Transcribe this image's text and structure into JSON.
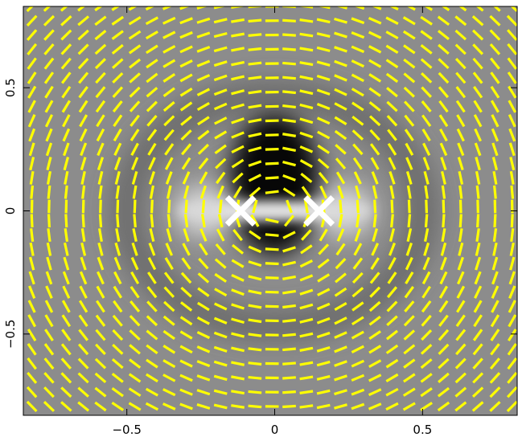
{
  "chart_data": {
    "type": "heatmap",
    "title": "",
    "xlabel": "",
    "ylabel": "",
    "xlim": [
      -0.85,
      0.82
    ],
    "ylim": [
      -0.83,
      0.83
    ],
    "x_ticks": [
      {
        "value": -0.5,
        "label": "−0.5"
      },
      {
        "value": 0,
        "label": "0"
      },
      {
        "value": 0.5,
        "label": "0.5"
      }
    ],
    "y_ticks": [
      {
        "value": -0.5,
        "label": "−0.5"
      },
      {
        "value": 0,
        "label": "0"
      },
      {
        "value": 0.5,
        "label": "0.5"
      }
    ],
    "colormap": "gray",
    "background_gray": "#8c8c8c",
    "vector_color": "#ffff00",
    "vector_grid_step": 0.058,
    "markers": [
      {
        "x": -0.115,
        "y": 0.0,
        "symbol": "x",
        "color": "#ffffff"
      },
      {
        "x": 0.15,
        "y": 0.0,
        "symbol": "x",
        "color": "#ffffff"
      }
    ],
    "features": [
      {
        "kind": "dark-core",
        "x": 0.0,
        "y": 0.11,
        "rx": 0.15,
        "ry": 0.24
      },
      {
        "kind": "bright-bar",
        "x": 0.0,
        "y": 0.0,
        "rx": 0.33,
        "ry": 0.035
      },
      {
        "kind": "bright-lobe",
        "x": -0.24,
        "y": 0.0,
        "rx": 0.1,
        "ry": 0.09
      },
      {
        "kind": "bright-lobe",
        "x": 0.24,
        "y": 0.0,
        "rx": 0.1,
        "ry": 0.09
      },
      {
        "kind": "dark-ring",
        "x": 0.0,
        "y": 0.0,
        "rx": 0.5,
        "ry": 0.39
      }
    ]
  }
}
